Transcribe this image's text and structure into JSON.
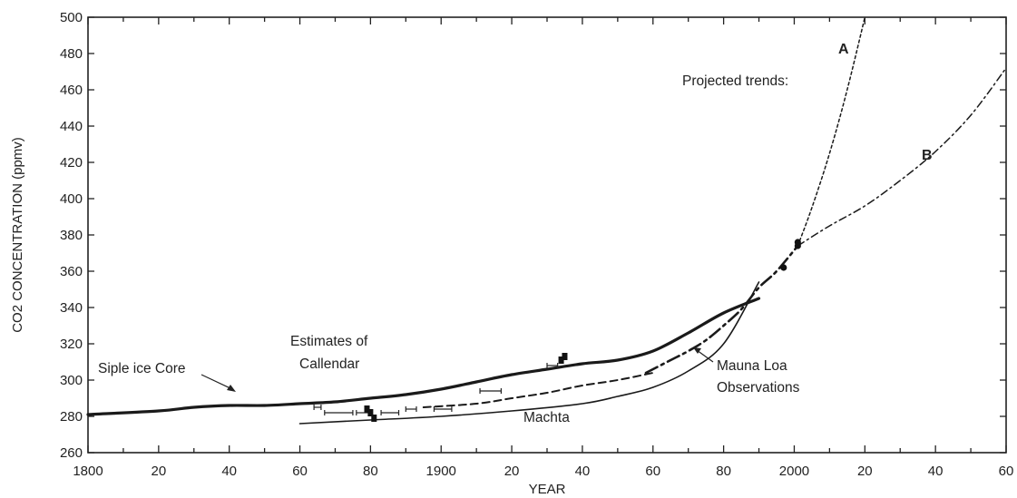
{
  "chart_data": {
    "type": "line",
    "xlabel": "YEAR",
    "ylabel": "CO2 CONCENTRATION (ppmv)",
    "xlim": [
      1800,
      2060
    ],
    "ylim": [
      260,
      500
    ],
    "x_ticks": [
      1800,
      1820,
      1840,
      1860,
      1880,
      1900,
      1920,
      1940,
      1960,
      1980,
      2000,
      2020,
      2040,
      2060
    ],
    "x_tick_labels": [
      "1800",
      "20",
      "40",
      "60",
      "80",
      "1900",
      "20",
      "40",
      "60",
      "80",
      "2000",
      "20",
      "40",
      "60"
    ],
    "y_ticks": [
      260,
      280,
      300,
      320,
      340,
      360,
      380,
      400,
      420,
      440,
      460,
      480,
      500
    ],
    "grid": false,
    "series": [
      {
        "name": "Siple ice Core",
        "style": "solid-thick",
        "x": [
          1800,
          1820,
          1830,
          1840,
          1850,
          1860,
          1870,
          1880,
          1890,
          1900,
          1910,
          1920,
          1930,
          1940,
          1950,
          1960,
          1970,
          1980,
          1990
        ],
        "y": [
          281,
          283,
          285,
          286,
          286,
          287,
          288,
          290,
          292,
          295,
          299,
          303,
          306,
          309,
          311,
          316,
          326,
          337,
          345
        ]
      },
      {
        "name": "Machta",
        "style": "solid-thin",
        "x": [
          1860,
          1880,
          1900,
          1920,
          1940,
          1950,
          1960,
          1970,
          1980,
          1990
        ],
        "y": [
          276,
          278,
          280,
          283,
          287,
          291,
          296,
          305,
          320,
          354
        ]
      },
      {
        "name": "Estimates of Callendar",
        "style": "dashed",
        "x": [
          1895,
          1910,
          1920,
          1930,
          1940,
          1950,
          1960
        ],
        "y": [
          285,
          287,
          290,
          293,
          297,
          300,
          304
        ]
      },
      {
        "name": "Mauna Loa Observations",
        "style": "dash-dot",
        "x": [
          1958,
          1965,
          1970,
          1975,
          1980,
          1985,
          1990,
          1995,
          2001
        ],
        "y": [
          304,
          311,
          316,
          322,
          330,
          339,
          351,
          360,
          374
        ]
      },
      {
        "name": "A",
        "style": "dotted",
        "x": [
          2001,
          2005,
          2010,
          2015,
          2020
        ],
        "y": [
          374,
          395,
          425,
          460,
          500
        ]
      },
      {
        "name": "B",
        "style": "dash-dot-fine",
        "x": [
          2001,
          2010,
          2020,
          2030,
          2040,
          2050,
          2060
        ],
        "y": [
          374,
          385,
          396,
          410,
          426,
          446,
          472
        ]
      }
    ],
    "markers": [
      {
        "kind": "dot",
        "x": 1997,
        "y": 362
      },
      {
        "kind": "dot",
        "x": 2001,
        "y": 374
      },
      {
        "kind": "dot",
        "x": 2001,
        "y": 376
      },
      {
        "kind": "square",
        "x": 1879,
        "y": 284
      },
      {
        "kind": "square",
        "x": 1880,
        "y": 282
      },
      {
        "kind": "square",
        "x": 1881,
        "y": 279
      },
      {
        "kind": "square",
        "x": 1935,
        "y": 313
      },
      {
        "kind": "square",
        "x": 1934,
        "y": 311
      }
    ],
    "error_bars": [
      {
        "x0": 1864,
        "x1": 1866,
        "y": 285
      },
      {
        "x0": 1867,
        "x1": 1875,
        "y": 282
      },
      {
        "x0": 1876,
        "x1": 1880,
        "y": 282
      },
      {
        "x0": 1883,
        "x1": 1888,
        "y": 282
      },
      {
        "x0": 1890,
        "x1": 1893,
        "y": 284
      },
      {
        "x0": 1898,
        "x1": 1903,
        "y": 284
      },
      {
        "x0": 1911,
        "x1": 1917,
        "y": 294
      },
      {
        "x0": 1930,
        "x1": 1933,
        "y": 308
      }
    ],
    "annotations": {
      "siple": "Siple ice Core",
      "callendar_line1": "Estimates of",
      "callendar_line2": "Callendar",
      "machta": "Machta",
      "mauna_loa_line1": "Mauna Loa",
      "mauna_loa_line2": "Observations",
      "projected": "Projected trends:",
      "label_a": "A",
      "label_b": "B"
    }
  }
}
